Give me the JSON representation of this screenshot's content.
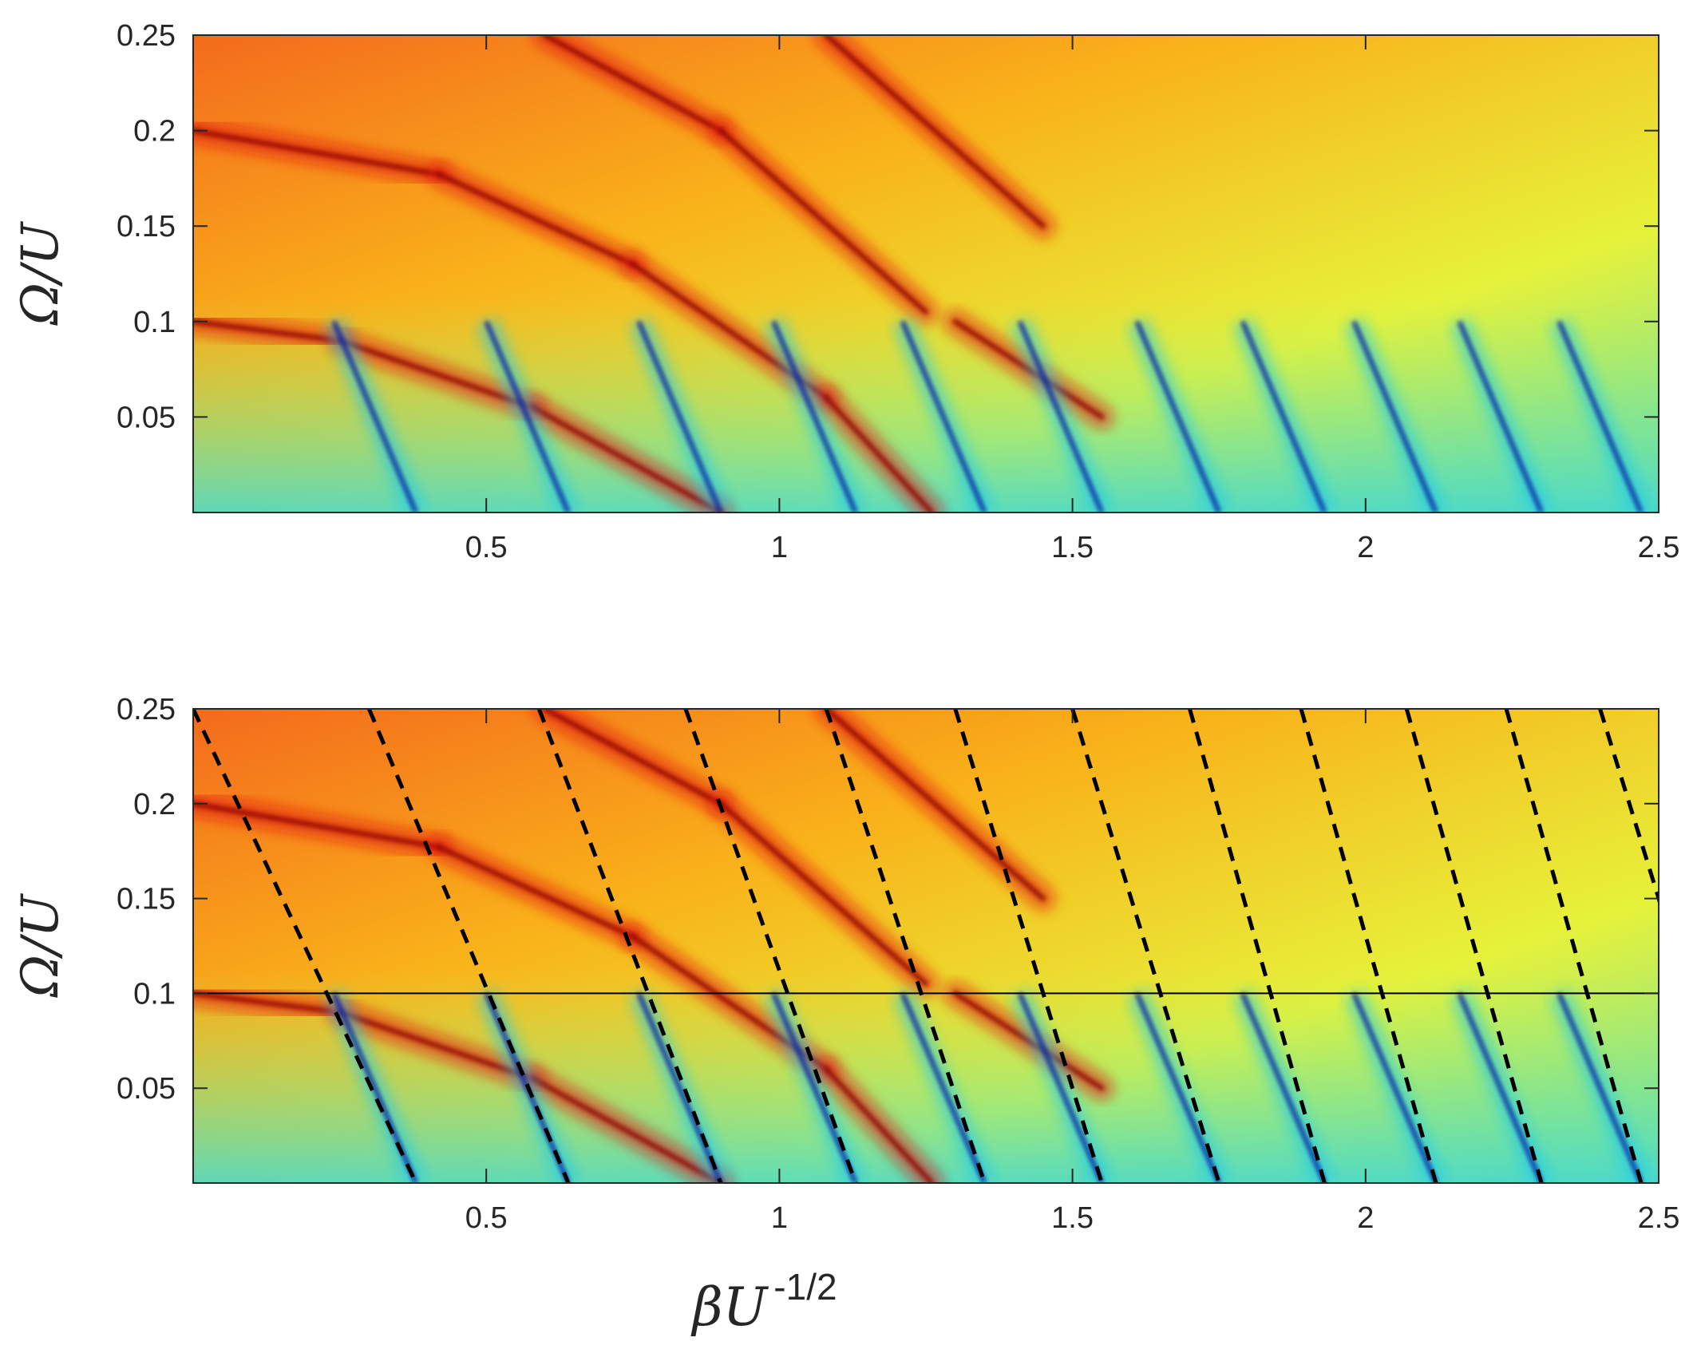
{
  "chart_data": [
    {
      "type": "heatmap",
      "panel": "top",
      "title": "",
      "xlabel": "",
      "ylabel": "Ω/U",
      "xlim": [
        0,
        2.5
      ],
      "ylim": [
        0,
        0.25
      ],
      "xticks": [
        0.5,
        1,
        1.5,
        2,
        2.5
      ],
      "xtick_labels": [
        "0.5",
        "1",
        "1.5",
        "2",
        "2.5"
      ],
      "yticks": [
        0.05,
        0.1,
        0.15,
        0.2,
        0.25
      ],
      "ytick_labels": [
        "0.05",
        "0.1",
        "0.15",
        "0.2",
        "0.25"
      ],
      "colormap": "jet",
      "grid": false,
      "features": {
        "red_ridges": [
          {
            "from": [
              0,
              0.2
            ],
            "to": [
              0.42,
              0.177
            ]
          },
          {
            "from": [
              0,
              0.1
            ],
            "to": [
              0.25,
              0.09
            ]
          },
          {
            "from": [
              0.25,
              0.09
            ],
            "to": [
              0.58,
              0.055
            ]
          },
          {
            "from": [
              0.58,
              0.055
            ],
            "to": [
              0.9,
              0.0
            ]
          },
          {
            "from": [
              0.42,
              0.177
            ],
            "to": [
              0.75,
              0.13
            ]
          },
          {
            "from": [
              0.75,
              0.13
            ],
            "to": [
              1.08,
              0.06
            ]
          },
          {
            "from": [
              1.08,
              0.06
            ],
            "to": [
              1.26,
              0.0
            ]
          },
          {
            "from": [
              0.6,
              0.25
            ],
            "to": [
              0.9,
              0.2
            ]
          },
          {
            "from": [
              0.9,
              0.2
            ],
            "to": [
              1.25,
              0.105
            ]
          },
          {
            "from": [
              1.08,
              0.25
            ],
            "to": [
              1.45,
              0.15
            ]
          },
          {
            "from": [
              1.3,
              0.1
            ],
            "to": [
              1.55,
              0.05
            ]
          }
        ],
        "blue_lines_x_at_zero": [
          0.38,
          0.64,
          0.9,
          1.13,
          1.35,
          1.55,
          1.75,
          1.93,
          2.12,
          2.3,
          2.47
        ],
        "blue_lines_top_omega": 0.1
      }
    },
    {
      "type": "heatmap",
      "panel": "bottom",
      "title": "",
      "xlabel": "βU",
      "xlabel_superscript": "-1/2",
      "ylabel": "Ω/U",
      "xlim": [
        0,
        2.5
      ],
      "ylim": [
        0,
        0.25
      ],
      "xticks": [
        0.5,
        1,
        1.5,
        2,
        2.5
      ],
      "xtick_labels": [
        "0.5",
        "1",
        "1.5",
        "2",
        "2.5"
      ],
      "yticks": [
        0.05,
        0.1,
        0.15,
        0.2,
        0.25
      ],
      "ytick_labels": [
        "0.05",
        "0.1",
        "0.15",
        "0.2",
        "0.25"
      ],
      "colormap": "jet",
      "grid": false,
      "horizontal_line": {
        "y": 0.1
      },
      "dashed_lines": [
        {
          "x_at_top": 0.0,
          "x_at_zero": 0.38
        },
        {
          "x_at_top": 0.3,
          "x_at_zero": 0.64
        },
        {
          "x_at_top": 0.59,
          "x_at_zero": 0.9
        },
        {
          "x_at_top": 0.84,
          "x_at_zero": 1.13
        },
        {
          "x_at_top": 1.08,
          "x_at_zero": 1.35
        },
        {
          "x_at_top": 1.3,
          "x_at_zero": 1.55
        },
        {
          "x_at_top": 1.5,
          "x_at_zero": 1.75
        },
        {
          "x_at_top": 1.7,
          "x_at_zero": 1.93
        },
        {
          "x_at_top": 1.89,
          "x_at_zero": 2.12
        },
        {
          "x_at_top": 2.07,
          "x_at_zero": 2.3
        },
        {
          "x_at_top": 2.24,
          "x_at_zero": 2.47
        },
        {
          "x_at_top": 2.4,
          "x_at_zero": 2.65
        }
      ]
    }
  ]
}
